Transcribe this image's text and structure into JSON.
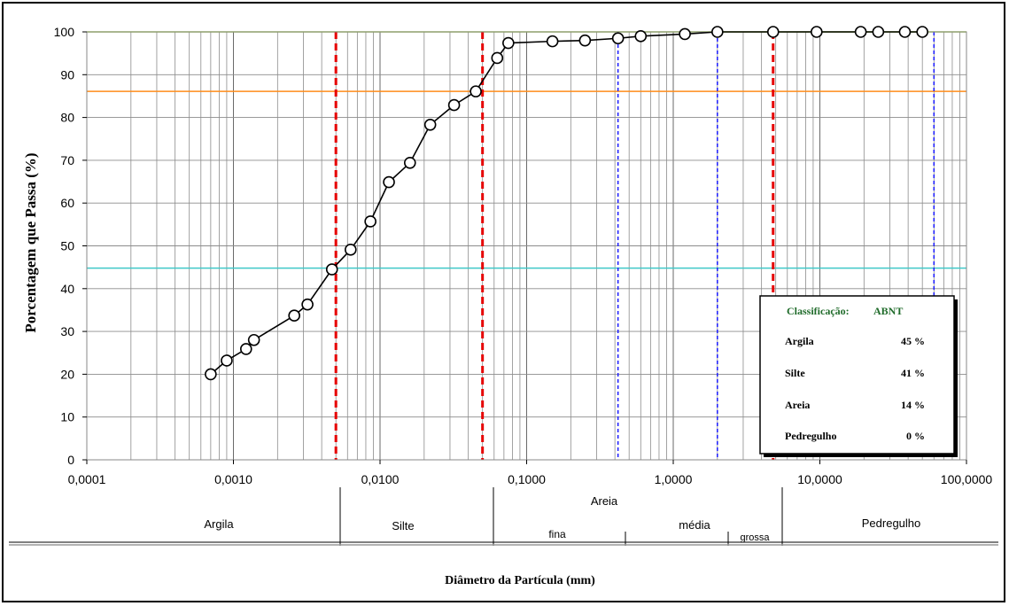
{
  "chart_data": {
    "type": "scatter",
    "title": "",
    "ylabel": "Porcentagem que Passa (%)",
    "xlabel": "Diâmetro da Partícula (mm)",
    "x_scale": "log",
    "xlim": [
      0.0001,
      100
    ],
    "ylim": [
      0,
      100
    ],
    "x_tick_labels": [
      "0,0001",
      "0,0010",
      "0,0100",
      "0,1000",
      "1,0000",
      "10,0000",
      "100,0000"
    ],
    "x_tick_values": [
      0.0001,
      0.001,
      0.01,
      0.1,
      1,
      10,
      100
    ],
    "y_ticks": [
      0,
      10,
      20,
      30,
      40,
      50,
      60,
      70,
      80,
      90,
      100
    ],
    "grid": true,
    "series": [
      {
        "x": [
          0.0007,
          0.0009,
          0.00122,
          0.00138,
          0.0026,
          0.0032,
          0.0047,
          0.0063,
          0.0086,
          0.0115,
          0.016,
          0.022,
          0.032,
          0.045,
          0.063,
          0.075,
          0.15,
          0.25,
          0.42,
          0.6,
          1.2,
          2.0,
          4.8,
          9.5,
          19,
          25,
          38,
          50
        ],
        "y": [
          20,
          23.2,
          25.9,
          28,
          33.7,
          36.3,
          44.5,
          49.1,
          55.7,
          64.9,
          69.4,
          78.3,
          82.9,
          86.1,
          93.9,
          97.4,
          97.8,
          98,
          98.5,
          99,
          99.5,
          100,
          100,
          100,
          100,
          100,
          100,
          100
        ]
      }
    ],
    "horizontal_lines": [
      {
        "y": 100,
        "color": "#9acd32"
      },
      {
        "y": 86.1,
        "color": "#ff8c1a"
      },
      {
        "y": 44.8,
        "color": "#40c8c8"
      }
    ],
    "boundaries_red_dashed": [
      0.005,
      0.05,
      4.8
    ],
    "boundaries_blue_dashed": [
      0.42,
      2.0,
      60
    ],
    "classification_box": {
      "title": "Classificação:",
      "standard": "ABNT",
      "rows": [
        {
          "label": "Argila",
          "value": "45 %"
        },
        {
          "label": "Silte",
          "value": "41 %"
        },
        {
          "label": "Areia",
          "value": "14 %"
        },
        {
          "label": "Pedregulho",
          "value": "0 %"
        }
      ]
    },
    "scale_bar": {
      "areia_label": "Areia",
      "sections": [
        {
          "label": "Argila"
        },
        {
          "label": "Silte"
        },
        {
          "label": "fina"
        },
        {
          "label": "média"
        },
        {
          "label": "grossa"
        },
        {
          "label": "Pedregulho"
        }
      ]
    }
  }
}
